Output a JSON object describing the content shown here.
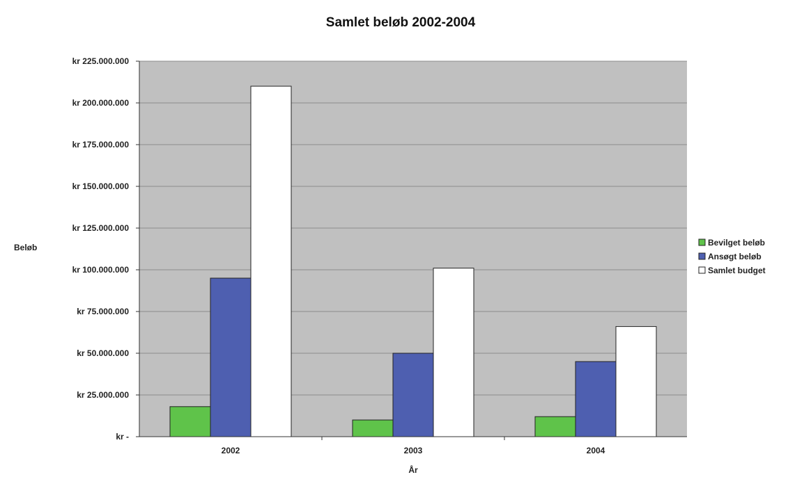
{
  "chart_data": {
    "type": "bar",
    "title": "Samlet beløb 2002-2004",
    "xlabel": "År",
    "ylabel": "Beløb",
    "categories": [
      "2002",
      "2003",
      "2004"
    ],
    "series": [
      {
        "name": "Bevilget beløb",
        "color": "#5fc34a",
        "values": [
          18000000,
          10000000,
          12000000
        ]
      },
      {
        "name": "Ansøgt beløb",
        "color": "#4e5fb0",
        "values": [
          95000000,
          50000000,
          45000000
        ]
      },
      {
        "name": "Samlet budget",
        "color": "#ffffff",
        "values": [
          210000000,
          101000000,
          66000000
        ]
      }
    ],
    "ylim": [
      0,
      225000000
    ],
    "yticks": [
      0,
      25000000,
      50000000,
      75000000,
      100000000,
      125000000,
      150000000,
      175000000,
      200000000,
      225000000
    ],
    "ytick_labels": [
      "kr -",
      "kr 25.000.000",
      "kr 50.000.000",
      "kr 75.000.000",
      "kr 100.000.000",
      "kr 125.000.000",
      "kr 150.000.000",
      "kr 175.000.000",
      "kr 200.000.000",
      "kr 225.000.000"
    ],
    "plot_background": "#c0c0c0",
    "grid": true,
    "legend_position": "right"
  }
}
